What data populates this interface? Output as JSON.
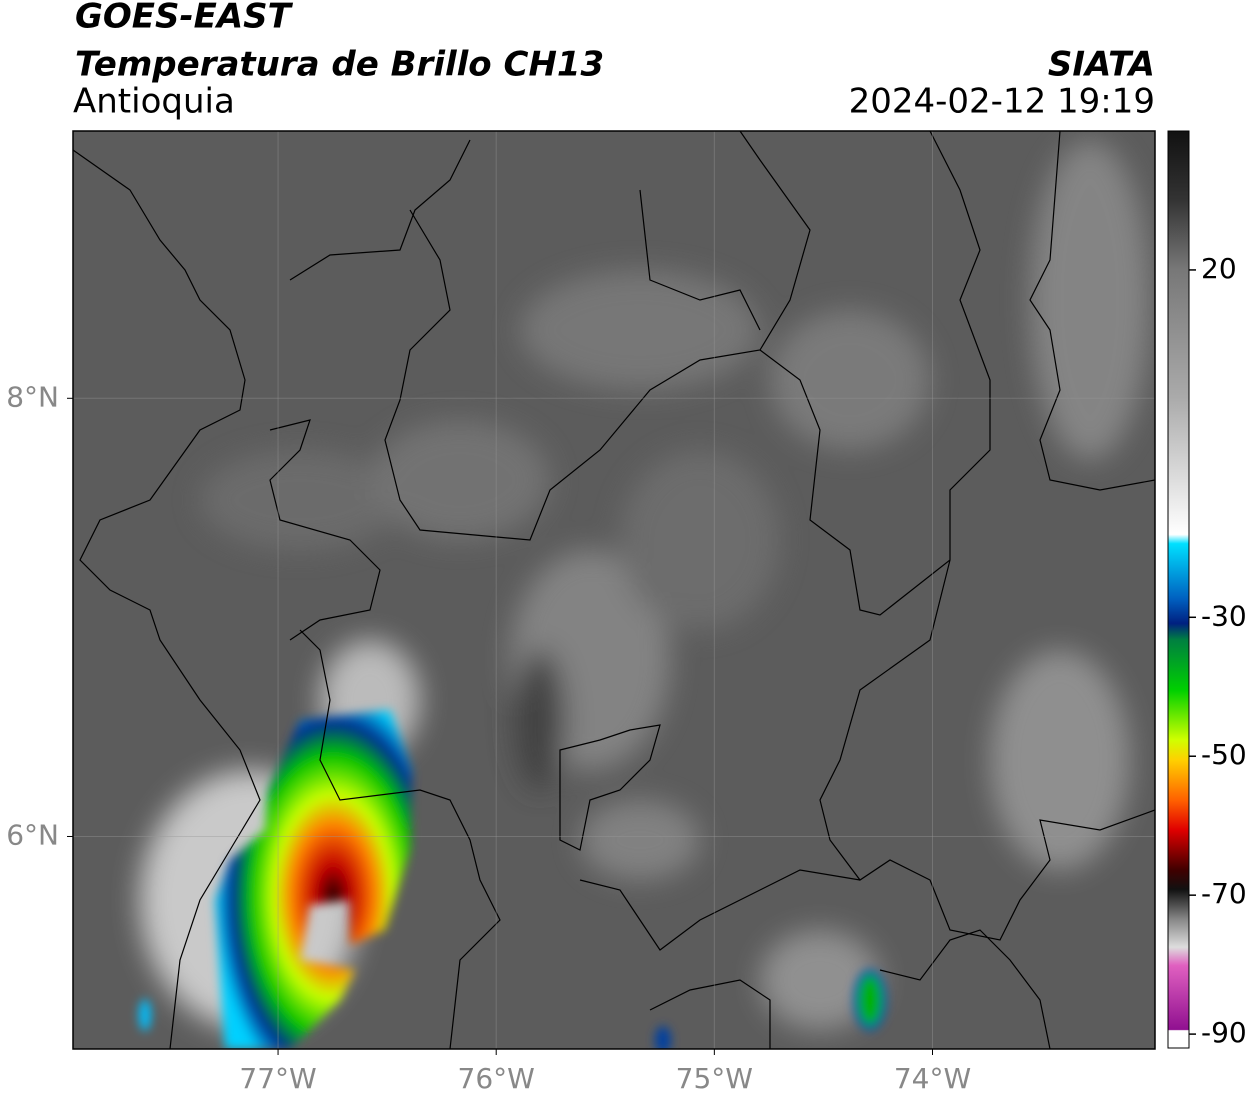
{
  "header": {
    "title": "GOES-EAST",
    "subtitle": "Temperatura de Brillo CH13",
    "region": "Antioquia",
    "source": "SIATA",
    "datetime": "2024-02-12 19:19"
  },
  "map": {
    "xlim": [
      -77.94,
      -72.98
    ],
    "ylim": [
      5.03,
      9.22
    ],
    "xticks": [
      {
        "value": -77,
        "label": "77°W"
      },
      {
        "value": -76,
        "label": "76°W"
      },
      {
        "value": -75,
        "label": "75°W"
      },
      {
        "value": -74,
        "label": "74°W"
      }
    ],
    "yticks": [
      {
        "value": 8,
        "label": "8°N"
      },
      {
        "value": 6,
        "label": "6°N"
      }
    ]
  },
  "colorbar": {
    "lim": [
      -92,
      40
    ],
    "ticks": [
      20,
      -30,
      -50,
      -70,
      -90
    ]
  }
}
